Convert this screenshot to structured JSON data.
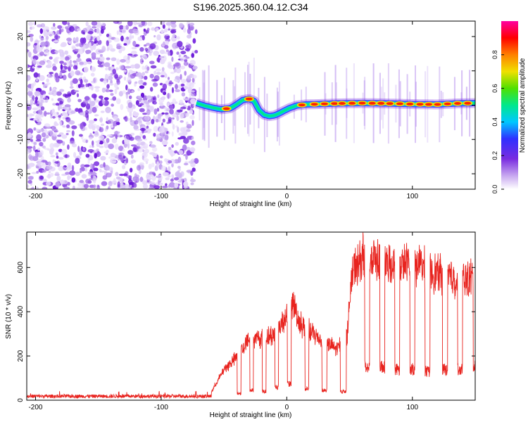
{
  "title": "S196.2025.360.04.12.C34",
  "chart_data": [
    {
      "type": "heatmap",
      "xlabel": "Height of straight line (km)",
      "ylabel": "Frequency (Hz)",
      "xlim": [
        -207,
        150
      ],
      "ylim": [
        -24.5,
        24.5
      ],
      "x_ticks": [
        -200,
        -100,
        0,
        100
      ],
      "y_ticks": [
        -20,
        -10,
        0,
        10,
        20
      ],
      "noise_region_end_km": -72,
      "ridge": {
        "x": [
          -72,
          -65,
          -58,
          -52,
          -45,
          -40,
          -35,
          -30,
          -26,
          -22,
          -18,
          -14,
          -10,
          -6,
          -2,
          2,
          8,
          15,
          25,
          40,
          60,
          80,
          100,
          120,
          135,
          150
        ],
        "y": [
          0.6,
          -0.2,
          -0.8,
          -1.2,
          -0.9,
          0.2,
          1.5,
          1.8,
          1.2,
          -1.5,
          -2.8,
          -3.2,
          -3.0,
          -2.4,
          -1.6,
          -0.9,
          -0.1,
          0.2,
          0.3,
          0.5,
          0.6,
          0.5,
          0.3,
          0.2,
          0.5,
          0.6
        ]
      },
      "bright_bursts_km": [
        -48,
        -30,
        12,
        22,
        30,
        38,
        44,
        52,
        60,
        68,
        75,
        82,
        90,
        98,
        106,
        113,
        120,
        128,
        136,
        144
      ],
      "colorbar": {
        "label": "Normalized spectral amplitude",
        "range": [
          0.0,
          1.0
        ],
        "ticks": [
          "0.0",
          "0.2",
          "0.4",
          "0.6",
          "0.8"
        ],
        "colors": [
          "#ffffff",
          "#c8a8f0",
          "#7a2de0",
          "#3030ff",
          "#00c8ff",
          "#00e88c",
          "#50e000",
          "#f0e000",
          "#ff8000",
          "#ff0000",
          "#ff00a0"
        ]
      }
    },
    {
      "type": "line",
      "xlabel": "Height of straight line (km)",
      "ylabel": "SNR (10 * v/v)",
      "xlim": [
        -207,
        150
      ],
      "ylim": [
        0,
        760
      ],
      "x_ticks": [
        -200,
        -100,
        0,
        100
      ],
      "y_ticks": [
        0,
        200,
        400,
        600
      ],
      "color": "#e8231e",
      "baseline_level": 18,
      "rise_start_km": -60,
      "envelope": {
        "x": [
          -60,
          -50,
          -40,
          -30,
          -20,
          -10,
          0,
          5,
          10,
          20,
          30,
          40,
          48,
          52,
          60,
          70,
          80,
          90,
          100,
          110,
          120,
          130,
          140,
          150
        ],
        "y": [
          40,
          150,
          210,
          300,
          300,
          320,
          420,
          480,
          380,
          330,
          280,
          250,
          320,
          620,
          700,
          690,
          660,
          650,
          680,
          640,
          620,
          600,
          590,
          600
        ]
      },
      "dips": [
        {
          "center": -38,
          "width": 3,
          "level": 30
        },
        {
          "center": -28,
          "width": 3,
          "level": 45
        },
        {
          "center": -18,
          "width": 3,
          "level": 40
        },
        {
          "center": -8,
          "width": 3,
          "level": 60
        },
        {
          "center": 2,
          "width": 3,
          "level": 75
        },
        {
          "center": 16,
          "width": 3,
          "level": 50
        },
        {
          "center": 30,
          "width": 4,
          "level": 45
        },
        {
          "center": 45,
          "width": 5,
          "level": 40
        },
        {
          "center": 64,
          "width": 4,
          "level": 150
        },
        {
          "center": 76,
          "width": 4,
          "level": 150
        },
        {
          "center": 88,
          "width": 4,
          "level": 140
        },
        {
          "center": 100,
          "width": 4,
          "level": 140
        },
        {
          "center": 112,
          "width": 4,
          "level": 130
        },
        {
          "center": 126,
          "width": 4,
          "level": 140
        },
        {
          "center": 138,
          "width": 4,
          "level": 140
        },
        {
          "center": 150,
          "width": 3,
          "level": 150
        }
      ]
    }
  ]
}
